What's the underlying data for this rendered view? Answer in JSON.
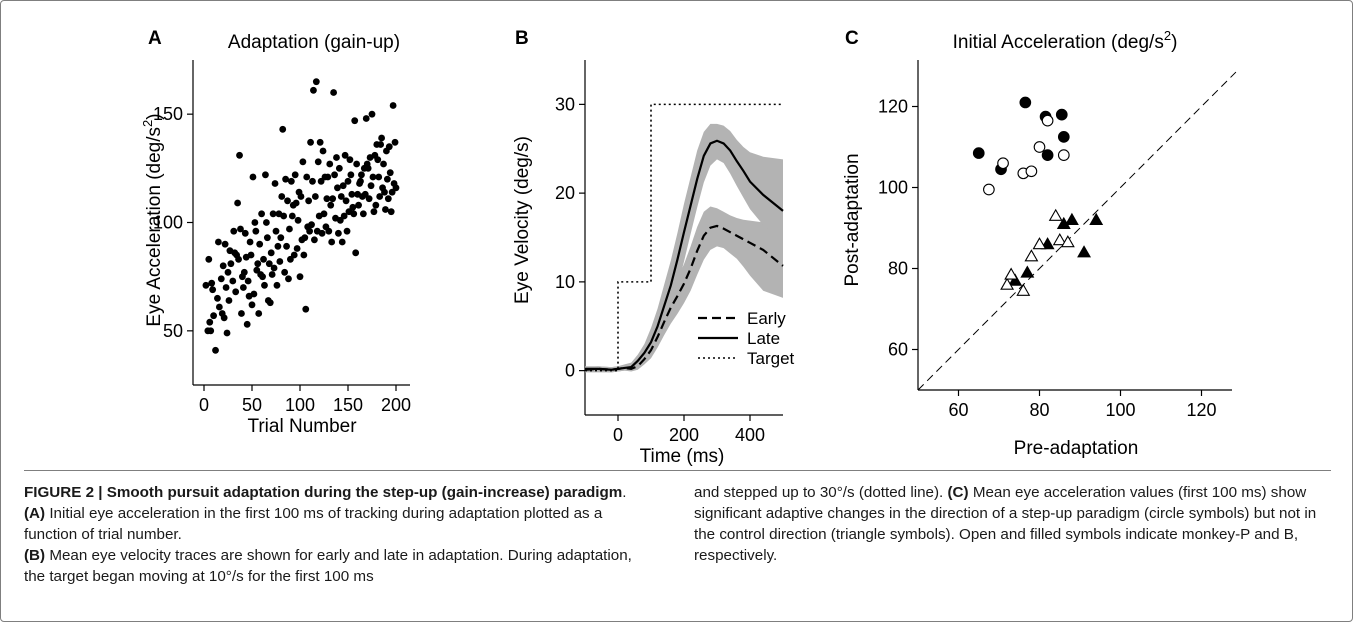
{
  "chart_data": [
    {
      "panel": "A",
      "type": "scatter",
      "title": "Adaptation (gain-up)",
      "xlabel": "Trial Number",
      "ylabel": "Eye Acceleration (deg/s",
      "ylabel_sup": "2",
      "ylabel_tail": ")",
      "xlim": [
        0,
        200
      ],
      "ylim": [
        25,
        175
      ],
      "xticks": [
        0,
        50,
        100,
        150,
        200
      ],
      "yticks": [
        50,
        100,
        150
      ],
      "points": [
        [
          2,
          71
        ],
        [
          4,
          50
        ],
        [
          5,
          83
        ],
        [
          6,
          54
        ],
        [
          7,
          50
        ],
        [
          8,
          72
        ],
        [
          9,
          69
        ],
        [
          10,
          57
        ],
        [
          12,
          41
        ],
        [
          14,
          65
        ],
        [
          15,
          91
        ],
        [
          16,
          61
        ],
        [
          18,
          74
        ],
        [
          19,
          58
        ],
        [
          20,
          80
        ],
        [
          21,
          56
        ],
        [
          22,
          90
        ],
        [
          23,
          70
        ],
        [
          24,
          49
        ],
        [
          25,
          77
        ],
        [
          26,
          64
        ],
        [
          27,
          87
        ],
        [
          28,
          81
        ],
        [
          30,
          73
        ],
        [
          31,
          96
        ],
        [
          32,
          86
        ],
        [
          33,
          68
        ],
        [
          34,
          85
        ],
        [
          35,
          109
        ],
        [
          36,
          83
        ],
        [
          37,
          131
        ],
        [
          38,
          97
        ],
        [
          39,
          58
        ],
        [
          40,
          75
        ],
        [
          41,
          70
        ],
        [
          42,
          77
        ],
        [
          43,
          95
        ],
        [
          44,
          84
        ],
        [
          45,
          53
        ],
        [
          46,
          73
        ],
        [
          47,
          66
        ],
        [
          48,
          91
        ],
        [
          49,
          85
        ],
        [
          50,
          62
        ],
        [
          51,
          121
        ],
        [
          52,
          67
        ],
        [
          53,
          100
        ],
        [
          54,
          96
        ],
        [
          55,
          78
        ],
        [
          56,
          81
        ],
        [
          57,
          58
        ],
        [
          58,
          90
        ],
        [
          59,
          76
        ],
        [
          60,
          104
        ],
        [
          61,
          75
        ],
        [
          62,
          83
        ],
        [
          63,
          71
        ],
        [
          64,
          122
        ],
        [
          65,
          100
        ],
        [
          66,
          93
        ],
        [
          67,
          64
        ],
        [
          68,
          81
        ],
        [
          69,
          63
        ],
        [
          70,
          86
        ],
        [
          71,
          76
        ],
        [
          72,
          104
        ],
        [
          73,
          79
        ],
        [
          74,
          118
        ],
        [
          75,
          96
        ],
        [
          76,
          71
        ],
        [
          77,
          89
        ],
        [
          78,
          104
        ],
        [
          79,
          82
        ],
        [
          80,
          93
        ],
        [
          81,
          112
        ],
        [
          82,
          143
        ],
        [
          83,
          103
        ],
        [
          84,
          77
        ],
        [
          85,
          120
        ],
        [
          86,
          89
        ],
        [
          87,
          110
        ],
        [
          88,
          74
        ],
        [
          89,
          97
        ],
        [
          90,
          83
        ],
        [
          91,
          119
        ],
        [
          92,
          103
        ],
        [
          93,
          108
        ],
        [
          94,
          85
        ],
        [
          95,
          122
        ],
        [
          96,
          109
        ],
        [
          97,
          88
        ],
        [
          98,
          101
        ],
        [
          99,
          114
        ],
        [
          100,
          75
        ],
        [
          101,
          112
        ],
        [
          102,
          92
        ],
        [
          103,
          128
        ],
        [
          104,
          85
        ],
        [
          105,
          93
        ],
        [
          106,
          60
        ],
        [
          107,
          121
        ],
        [
          108,
          98
        ],
        [
          109,
          110
        ],
        [
          110,
          96
        ],
        [
          111,
          137
        ],
        [
          112,
          99
        ],
        [
          113,
          119
        ],
        [
          114,
          161
        ],
        [
          115,
          92
        ],
        [
          116,
          112
        ],
        [
          117,
          165
        ],
        [
          118,
          96
        ],
        [
          119,
          128
        ],
        [
          120,
          103
        ],
        [
          121,
          137
        ],
        [
          122,
          119
        ],
        [
          123,
          95
        ],
        [
          124,
          133
        ],
        [
          125,
          104
        ],
        [
          126,
          121
        ],
        [
          127,
          98
        ],
        [
          128,
          111
        ],
        [
          129,
          121
        ],
        [
          130,
          96
        ],
        [
          131,
          127
        ],
        [
          132,
          108
        ],
        [
          133,
          91
        ],
        [
          134,
          111
        ],
        [
          135,
          160
        ],
        [
          136,
          122
        ],
        [
          137,
          102
        ],
        [
          138,
          130
        ],
        [
          139,
          116
        ],
        [
          140,
          95
        ],
        [
          141,
          125
        ],
        [
          142,
          101
        ],
        [
          143,
          112
        ],
        [
          144,
          91
        ],
        [
          145,
          117
        ],
        [
          146,
          103
        ],
        [
          147,
          131
        ],
        [
          148,
          110
        ],
        [
          149,
          96
        ],
        [
          150,
          119
        ],
        [
          151,
          105
        ],
        [
          152,
          129
        ],
        [
          153,
          122
        ],
        [
          154,
          113
        ],
        [
          155,
          107
        ],
        [
          156,
          104
        ],
        [
          157,
          147
        ],
        [
          158,
          86
        ],
        [
          159,
          127
        ],
        [
          160,
          113
        ],
        [
          161,
          108
        ],
        [
          162,
          118
        ],
        [
          163,
          119
        ],
        [
          164,
          122
        ],
        [
          165,
          112
        ],
        [
          166,
          104
        ],
        [
          167,
          125
        ],
        [
          168,
          113
        ],
        [
          169,
          148
        ],
        [
          170,
          127
        ],
        [
          171,
          125
        ],
        [
          172,
          111
        ],
        [
          173,
          130
        ],
        [
          174,
          117
        ],
        [
          175,
          150
        ],
        [
          176,
          121
        ],
        [
          177,
          105
        ],
        [
          178,
          131
        ],
        [
          179,
          108
        ],
        [
          180,
          136
        ],
        [
          181,
          129
        ],
        [
          182,
          121
        ],
        [
          183,
          112
        ],
        [
          184,
          136
        ],
        [
          185,
          139
        ],
        [
          186,
          116
        ],
        [
          187,
          127
        ],
        [
          188,
          114
        ],
        [
          189,
          106
        ],
        [
          190,
          133
        ],
        [
          191,
          120
        ],
        [
          192,
          111
        ],
        [
          193,
          135
        ],
        [
          194,
          123
        ],
        [
          195,
          105
        ],
        [
          196,
          114
        ],
        [
          197,
          154
        ],
        [
          198,
          118
        ],
        [
          199,
          137
        ],
        [
          200,
          116
        ]
      ]
    },
    {
      "panel": "B",
      "type": "line",
      "title": "",
      "xlabel": "Time (ms)",
      "ylabel": "Eye Velocity (deg/s)",
      "xlim": [
        -100,
        500
      ],
      "ylim": [
        -5,
        35
      ],
      "xticks": [
        0,
        200,
        400
      ],
      "yticks": [
        0,
        10,
        20,
        30
      ],
      "legend": [
        "Early",
        "Late",
        "Target"
      ],
      "series": [
        {
          "name": "Early",
          "style": "dashed",
          "x": [
            -100,
            -60,
            -20,
            0,
            20,
            40,
            60,
            80,
            100,
            120,
            140,
            160,
            180,
            200,
            220,
            240,
            260,
            280,
            300,
            320,
            340,
            360,
            380,
            400,
            440,
            500
          ],
          "y": [
            0.1,
            0.2,
            0.1,
            0.2,
            0.3,
            0.2,
            0.5,
            1.3,
            2.3,
            3.8,
            5.5,
            7.1,
            8.4,
            9.8,
            11.5,
            13.5,
            15.2,
            16.1,
            16.3,
            16.0,
            15.6,
            15.2,
            14.8,
            14.4,
            13.6,
            11.8
          ],
          "band_upper": [
            0.4,
            0.5,
            0.4,
            0.5,
            0.6,
            0.6,
            0.9,
            1.9,
            3.2,
            5.0,
            7.0,
            8.9,
            10.4,
            12.0,
            14.0,
            16.2,
            17.9,
            18.5,
            18.3,
            17.9,
            17.5,
            17.2,
            17.0,
            16.9,
            16.7,
            16.5
          ],
          "band_lower": [
            -0.2,
            -0.2,
            -0.2,
            -0.1,
            0.0,
            -0.1,
            0.1,
            0.7,
            1.4,
            2.6,
            4.0,
            5.3,
            6.4,
            7.6,
            9.0,
            10.8,
            12.5,
            13.6,
            14.0,
            13.8,
            13.2,
            12.6,
            11.7,
            10.7,
            9.0,
            8.2
          ]
        },
        {
          "name": "Late",
          "style": "solid",
          "x": [
            -100,
            -60,
            -20,
            0,
            20,
            40,
            60,
            80,
            100,
            120,
            140,
            160,
            180,
            200,
            220,
            240,
            260,
            280,
            300,
            320,
            340,
            360,
            380,
            400,
            440,
            500
          ],
          "y": [
            0.2,
            0.2,
            0.1,
            0.2,
            0.3,
            0.4,
            1.1,
            2.0,
            3.2,
            5.0,
            7.3,
            9.6,
            12.5,
            15.6,
            18.6,
            21.6,
            24.2,
            25.6,
            25.9,
            25.6,
            24.8,
            23.6,
            22.5,
            21.3,
            19.8,
            18.0
          ],
          "band_upper": [
            0.5,
            0.5,
            0.4,
            0.5,
            0.7,
            0.9,
            1.8,
            3.0,
            4.8,
            7.0,
            9.7,
            12.4,
            15.5,
            18.8,
            21.8,
            24.8,
            26.9,
            27.8,
            27.8,
            27.6,
            27.0,
            26.0,
            25.2,
            24.6,
            24.1,
            23.8
          ],
          "band_lower": [
            -0.1,
            -0.1,
            -0.2,
            -0.1,
            0.0,
            0.0,
            0.5,
            1.0,
            1.7,
            3.0,
            4.8,
            6.8,
            9.4,
            12.3,
            15.4,
            18.4,
            21.2,
            23.1,
            23.8,
            23.4,
            22.2,
            20.8,
            19.5,
            18.2,
            16.4,
            14.5
          ]
        },
        {
          "name": "Target",
          "style": "dotted",
          "x": [
            -100,
            0,
            0,
            100,
            100,
            500
          ],
          "y": [
            0,
            0,
            10,
            10,
            30,
            30
          ]
        }
      ]
    },
    {
      "panel": "C",
      "type": "scatter",
      "title": "Initial Acceleration (deg/s",
      "title_sup": "2",
      "title_tail": ")",
      "xlabel": "Pre-adaptation",
      "ylabel": "Post-adaptation",
      "xlim": [
        50,
        130
      ],
      "ylim": [
        50,
        130
      ],
      "xticks": [
        60,
        80,
        100,
        120
      ],
      "yticks": [
        60,
        80,
        100,
        120
      ],
      "diagonal": "dashed unity line",
      "series": [
        {
          "marker": "filled-circle",
          "points": [
            [
              65,
              108.5
            ],
            [
              70.5,
              104.5
            ],
            [
              76.5,
              121
            ],
            [
              81.5,
              117.5
            ],
            [
              82,
              108
            ],
            [
              85.5,
              118
            ],
            [
              86,
              112.5
            ]
          ]
        },
        {
          "marker": "open-circle",
          "points": [
            [
              67.5,
              99.5
            ],
            [
              71,
              106
            ],
            [
              76,
              103.5
            ],
            [
              78,
              104
            ],
            [
              80,
              110
            ],
            [
              82,
              116.5
            ],
            [
              86,
              108
            ]
          ]
        },
        {
          "marker": "filled-triangle",
          "points": [
            [
              74,
              77
            ],
            [
              77,
              79
            ],
            [
              82,
              86
            ],
            [
              86,
              91
            ],
            [
              88,
              92
            ],
            [
              91,
              84
            ],
            [
              94,
              92
            ]
          ]
        },
        {
          "marker": "open-triangle",
          "points": [
            [
              72,
              76
            ],
            [
              73,
              78.5
            ],
            [
              76,
              74.5
            ],
            [
              78,
              83
            ],
            [
              80,
              86
            ],
            [
              84,
              93
            ],
            [
              85,
              87
            ],
            [
              87,
              86.5
            ]
          ]
        }
      ]
    }
  ],
  "panels": {
    "a": "A",
    "b": "B",
    "c": "C"
  },
  "caption": {
    "heading": "FIGURE 2 | Smooth pursuit adaptation during the step-up (gain-increase) paradigm",
    "a_label": "(A)",
    "a_text": "Initial eye acceleration in the first 100 ms of tracking during adaptation plotted as a function of trial number.",
    "b_label": "(B)",
    "b_text": "Mean eye velocity traces are shown for early and late in adaptation. During adaptation, the target began moving at 10°/s for the first 100 ms",
    "b_text_cont": "and stepped up to 30°/s (dotted line).",
    "c_label": "(C)",
    "c_text": "Mean eye acceleration values (first 100 ms) show significant adaptive changes in the direction of a step-up paradigm (circle symbols) but not in the control direction (triangle symbols). Open and filled symbols indicate monkey-P and B, respectively."
  }
}
